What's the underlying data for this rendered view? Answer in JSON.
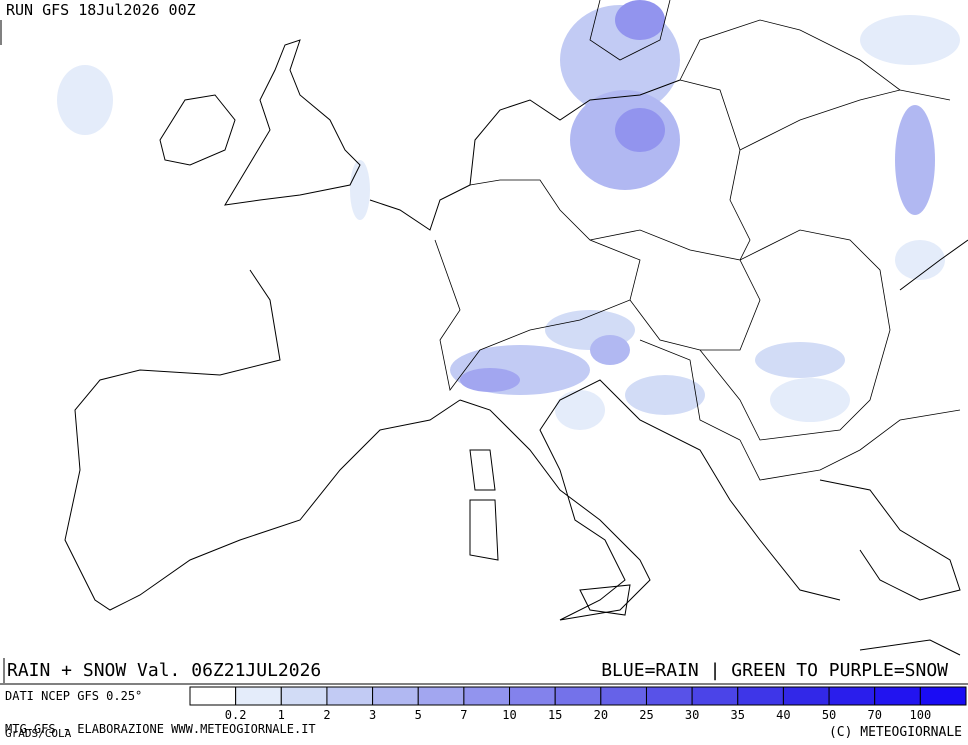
{
  "header": {
    "run": "RUN GFS 18Jul2026 00Z"
  },
  "footer": {
    "title": "RAIN + SNOW Val. 06Z21JUL2026",
    "legend_note": "BLUE=RAIN | GREEN TO PURPLE=SNOW",
    "source": "DATI NCEP GFS 0.25°",
    "credit": "MTG-GFS - ELABORAZIONE WWW.METEOGIORNALE.IT",
    "grads": "GrADS/COLA",
    "copyright": "(C) METEOGIORNALE"
  },
  "colorbar": {
    "labels": [
      0.2,
      1,
      2,
      3,
      5,
      7,
      10,
      15,
      20,
      25,
      30,
      35,
      40,
      50,
      70,
      100
    ],
    "colors": [
      "#ffffff",
      "#e4ecfa",
      "#d2dcf6",
      "#c2cbf4",
      "#b1b8f2",
      "#a2a6f0",
      "#9294ee",
      "#8382ec",
      "#7472ea",
      "#6662e8",
      "#5852e8",
      "#4b44e8",
      "#3e36e8",
      "#3228e8",
      "#2a1eec",
      "#2214f0",
      "#1a0cf4"
    ]
  }
}
